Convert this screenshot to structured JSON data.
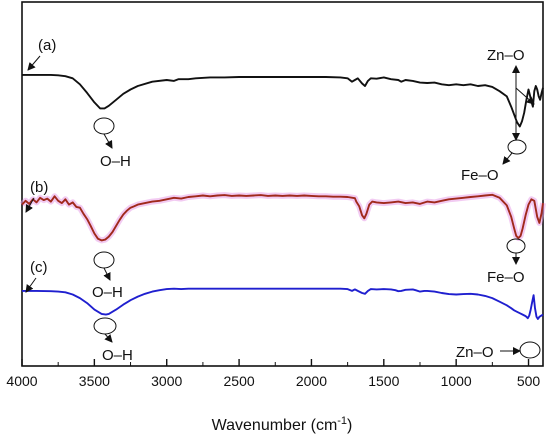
{
  "chart_data": {
    "type": "line",
    "xlabel_main": "Wavenumber (cm",
    "xlabel_sup": "-1",
    "xlabel_end": ")",
    "xlim": [
      4000,
      400
    ],
    "x_ticks": [
      4000,
      3500,
      3000,
      2500,
      2000,
      1500,
      1000,
      500
    ],
    "x_tick_labels": [
      "4000",
      "3500",
      "3000",
      "2500",
      "2000",
      "1500",
      "1000",
      "500"
    ],
    "series": [
      {
        "name": "(a)",
        "color": "#111111",
        "points": [
          [
            4000,
            0.99
          ],
          [
            3900,
            0.99
          ],
          [
            3800,
            0.99
          ],
          [
            3750,
            0.985
          ],
          [
            3700,
            0.975
          ],
          [
            3650,
            0.95
          ],
          [
            3600,
            0.88
          ],
          [
            3550,
            0.78
          ],
          [
            3500,
            0.67
          ],
          [
            3460,
            0.6
          ],
          [
            3430,
            0.6
          ],
          [
            3400,
            0.63
          ],
          [
            3350,
            0.7
          ],
          [
            3300,
            0.77
          ],
          [
            3250,
            0.82
          ],
          [
            3200,
            0.86
          ],
          [
            3100,
            0.91
          ],
          [
            3000,
            0.93
          ],
          [
            2950,
            0.92
          ],
          [
            2920,
            0.94
          ],
          [
            2850,
            0.94
          ],
          [
            2800,
            0.95
          ],
          [
            2700,
            0.96
          ],
          [
            2600,
            0.96
          ],
          [
            2500,
            0.965
          ],
          [
            2400,
            0.965
          ],
          [
            2300,
            0.965
          ],
          [
            2200,
            0.965
          ],
          [
            2100,
            0.965
          ],
          [
            2000,
            0.965
          ],
          [
            1900,
            0.965
          ],
          [
            1800,
            0.96
          ],
          [
            1750,
            0.95
          ],
          [
            1720,
            0.91
          ],
          [
            1700,
            0.93
          ],
          [
            1680,
            0.95
          ],
          [
            1650,
            0.89
          ],
          [
            1630,
            0.86
          ],
          [
            1610,
            0.92
          ],
          [
            1590,
            0.95
          ],
          [
            1550,
            0.945
          ],
          [
            1500,
            0.96
          ],
          [
            1450,
            0.94
          ],
          [
            1400,
            0.93
          ],
          [
            1380,
            0.91
          ],
          [
            1350,
            0.93
          ],
          [
            1300,
            0.92
          ],
          [
            1250,
            0.9
          ],
          [
            1200,
            0.895
          ],
          [
            1150,
            0.9
          ],
          [
            1100,
            0.88
          ],
          [
            1050,
            0.87
          ],
          [
            1000,
            0.88
          ],
          [
            950,
            0.87
          ],
          [
            900,
            0.88
          ],
          [
            850,
            0.86
          ],
          [
            800,
            0.87
          ],
          [
            750,
            0.85
          ],
          [
            700,
            0.8
          ],
          [
            650,
            0.74
          ],
          [
            620,
            0.62
          ],
          [
            600,
            0.53
          ],
          [
            580,
            0.44
          ],
          [
            560,
            0.39
          ],
          [
            545,
            0.45
          ],
          [
            530,
            0.55
          ],
          [
            515,
            0.7
          ],
          [
            500,
            0.82
          ],
          [
            490,
            0.75
          ],
          [
            480,
            0.68
          ],
          [
            470,
            0.62
          ],
          [
            460,
            0.8
          ],
          [
            450,
            0.86
          ],
          [
            440,
            0.82
          ],
          [
            430,
            0.74
          ],
          [
            420,
            0.7
          ],
          [
            410,
            0.78
          ],
          [
            400,
            0.84
          ]
        ]
      },
      {
        "name": "(b)",
        "color": "#a0291c",
        "points": [
          [
            4000,
            0.86
          ],
          [
            3975,
            0.91
          ],
          [
            3950,
            0.87
          ],
          [
            3925,
            0.93
          ],
          [
            3900,
            0.89
          ],
          [
            3875,
            0.95
          ],
          [
            3850,
            0.92
          ],
          [
            3825,
            0.94
          ],
          [
            3800,
            0.9
          ],
          [
            3775,
            0.97
          ],
          [
            3750,
            0.91
          ],
          [
            3725,
            0.88
          ],
          [
            3700,
            0.93
          ],
          [
            3675,
            0.86
          ],
          [
            3650,
            0.89
          ],
          [
            3625,
            0.83
          ],
          [
            3600,
            0.82
          ],
          [
            3575,
            0.74
          ],
          [
            3550,
            0.67
          ],
          [
            3525,
            0.58
          ],
          [
            3500,
            0.48
          ],
          [
            3475,
            0.41
          ],
          [
            3450,
            0.39
          ],
          [
            3425,
            0.4
          ],
          [
            3400,
            0.44
          ],
          [
            3375,
            0.5
          ],
          [
            3350,
            0.58
          ],
          [
            3325,
            0.66
          ],
          [
            3300,
            0.73
          ],
          [
            3275,
            0.78
          ],
          [
            3250,
            0.82
          ],
          [
            3225,
            0.84
          ],
          [
            3200,
            0.86
          ],
          [
            3150,
            0.88
          ],
          [
            3100,
            0.9
          ],
          [
            3050,
            0.91
          ],
          [
            3000,
            0.93
          ],
          [
            2950,
            0.95
          ],
          [
            2900,
            0.94
          ],
          [
            2850,
            0.96
          ],
          [
            2800,
            0.97
          ],
          [
            2750,
            0.98
          ],
          [
            2700,
            0.97
          ],
          [
            2650,
            0.98
          ],
          [
            2600,
            0.985
          ],
          [
            2550,
            0.975
          ],
          [
            2500,
            0.98
          ],
          [
            2450,
            0.975
          ],
          [
            2400,
            0.98
          ],
          [
            2350,
            0.985
          ],
          [
            2300,
            0.975
          ],
          [
            2250,
            0.98
          ],
          [
            2200,
            0.975
          ],
          [
            2150,
            0.98
          ],
          [
            2100,
            0.975
          ],
          [
            2050,
            0.98
          ],
          [
            2000,
            0.975
          ],
          [
            1950,
            0.97
          ],
          [
            1900,
            0.97
          ],
          [
            1850,
            0.965
          ],
          [
            1800,
            0.965
          ],
          [
            1750,
            0.96
          ],
          [
            1700,
            0.945
          ],
          [
            1690,
            0.9
          ],
          [
            1670,
            0.84
          ],
          [
            1650,
            0.72
          ],
          [
            1635,
            0.68
          ],
          [
            1620,
            0.74
          ],
          [
            1600,
            0.86
          ],
          [
            1580,
            0.9
          ],
          [
            1550,
            0.89
          ],
          [
            1500,
            0.88
          ],
          [
            1450,
            0.89
          ],
          [
            1400,
            0.9
          ],
          [
            1350,
            0.88
          ],
          [
            1300,
            0.89
          ],
          [
            1250,
            0.87
          ],
          [
            1200,
            0.9
          ],
          [
            1150,
            0.89
          ],
          [
            1100,
            0.91
          ],
          [
            1050,
            0.93
          ],
          [
            1000,
            0.94
          ],
          [
            950,
            0.95
          ],
          [
            900,
            0.96
          ],
          [
            850,
            0.97
          ],
          [
            800,
            0.98
          ],
          [
            750,
            0.99
          ],
          [
            700,
            0.95
          ],
          [
            650,
            0.85
          ],
          [
            620,
            0.7
          ],
          [
            600,
            0.55
          ],
          [
            585,
            0.45
          ],
          [
            570,
            0.42
          ],
          [
            555,
            0.45
          ],
          [
            540,
            0.55
          ],
          [
            520,
            0.72
          ],
          [
            500,
            0.86
          ],
          [
            480,
            0.93
          ],
          [
            460,
            0.91
          ],
          [
            440,
            0.7
          ],
          [
            425,
            0.62
          ],
          [
            410,
            0.75
          ],
          [
            400,
            0.88
          ]
        ]
      },
      {
        "name": "(c)",
        "color": "#1f1fcf",
        "points": [
          [
            4000,
            0.96
          ],
          [
            3900,
            0.96
          ],
          [
            3800,
            0.955
          ],
          [
            3750,
            0.95
          ],
          [
            3700,
            0.94
          ],
          [
            3650,
            0.91
          ],
          [
            3600,
            0.86
          ],
          [
            3550,
            0.79
          ],
          [
            3500,
            0.7
          ],
          [
            3450,
            0.64
          ],
          [
            3420,
            0.63
          ],
          [
            3400,
            0.64
          ],
          [
            3350,
            0.7
          ],
          [
            3300,
            0.77
          ],
          [
            3250,
            0.83
          ],
          [
            3200,
            0.88
          ],
          [
            3150,
            0.92
          ],
          [
            3100,
            0.95
          ],
          [
            3050,
            0.97
          ],
          [
            3000,
            0.985
          ],
          [
            2950,
            0.99
          ],
          [
            2900,
            0.985
          ],
          [
            2850,
            0.99
          ],
          [
            2800,
            0.99
          ],
          [
            2700,
            0.99
          ],
          [
            2600,
            0.99
          ],
          [
            2500,
            0.99
          ],
          [
            2400,
            0.99
          ],
          [
            2300,
            0.99
          ],
          [
            2200,
            0.99
          ],
          [
            2100,
            0.99
          ],
          [
            2000,
            0.99
          ],
          [
            1900,
            0.99
          ],
          [
            1800,
            0.99
          ],
          [
            1750,
            0.985
          ],
          [
            1720,
            0.96
          ],
          [
            1700,
            0.98
          ],
          [
            1680,
            0.96
          ],
          [
            1650,
            0.93
          ],
          [
            1630,
            0.92
          ],
          [
            1610,
            0.96
          ],
          [
            1590,
            0.985
          ],
          [
            1550,
            0.98
          ],
          [
            1500,
            0.985
          ],
          [
            1450,
            0.98
          ],
          [
            1420,
            0.97
          ],
          [
            1400,
            0.955
          ],
          [
            1380,
            0.96
          ],
          [
            1350,
            0.975
          ],
          [
            1300,
            0.98
          ],
          [
            1280,
            0.97
          ],
          [
            1250,
            0.95
          ],
          [
            1220,
            0.96
          ],
          [
            1200,
            0.96
          ],
          [
            1150,
            0.95
          ],
          [
            1100,
            0.93
          ],
          [
            1050,
            0.915
          ],
          [
            1000,
            0.91
          ],
          [
            950,
            0.915
          ],
          [
            900,
            0.92
          ],
          [
            850,
            0.91
          ],
          [
            800,
            0.89
          ],
          [
            750,
            0.86
          ],
          [
            700,
            0.81
          ],
          [
            650,
            0.76
          ],
          [
            620,
            0.72
          ],
          [
            600,
            0.69
          ],
          [
            580,
            0.67
          ],
          [
            560,
            0.65
          ],
          [
            540,
            0.63
          ],
          [
            520,
            0.61
          ],
          [
            505,
            0.58
          ],
          [
            495,
            0.62
          ],
          [
            485,
            0.7
          ],
          [
            475,
            0.8
          ],
          [
            465,
            0.9
          ],
          [
            455,
            0.72
          ],
          [
            445,
            0.6
          ],
          [
            435,
            0.57
          ],
          [
            425,
            0.6
          ],
          [
            410,
            0.62
          ],
          [
            400,
            0.63
          ]
        ]
      }
    ],
    "annotations": {
      "a_OH": "O–H",
      "a_ZnO": "Zn–O",
      "a_FeO": "Fe–O",
      "b_OH": "O–H",
      "b_FeO": "Fe–O",
      "c_OH": "O–H",
      "c_ZnO": "Zn–O"
    },
    "legend": "labels next to traces",
    "grid": false
  }
}
